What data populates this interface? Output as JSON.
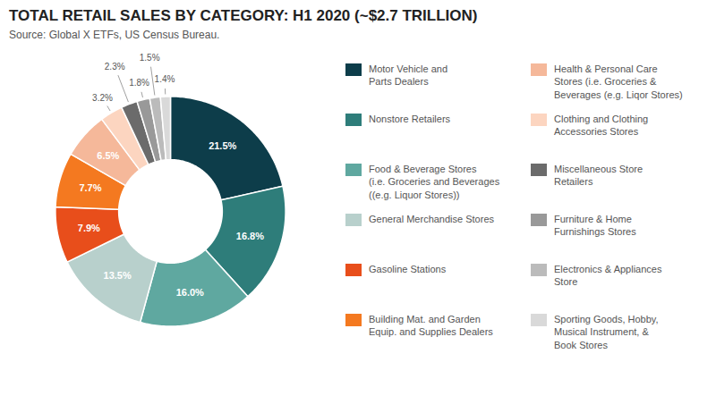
{
  "chart_data": {
    "type": "donut",
    "title": "TOTAL RETAIL SALES BY CATEGORY: H1 2020 (~$2.7 TRILLION)",
    "subtitle": "Source: Global X ETFs, US Census Bureau.",
    "categories": [
      "Motor Vehicle and\nParts Dealers",
      "Nonstore Retailers",
      "Food & Beverage Stores\n(i.e. Groceries and Beverages\n((e.g. Liquor Stores))",
      "General Merchandise Stores",
      "Gasoline Stations",
      "Building Mat. and Garden\nEquip. and Supplies Dealers",
      "Health & Personal Care\nStores (i.e. Groceries &\nBeverages (e.g. Liqor Stores)",
      "Clothing and Clothing\nAccessories Stores",
      "Miscellaneous Store\nRetailers",
      "Furniture & Home\nFurnishings Stores",
      "Electronics & Appliances\nStore",
      "Sporting Goods, Hobby,\nMusical Instrument, &\nBook Stores"
    ],
    "values": [
      21.5,
      16.8,
      16.0,
      13.5,
      7.9,
      7.7,
      6.5,
      3.2,
      2.3,
      1.8,
      1.5,
      1.4
    ],
    "value_labels": [
      "21.5%",
      "16.8%",
      "16.0%",
      "13.5%",
      "7.9%",
      "7.7%",
      "6.5%",
      "3.2%",
      "2.3%",
      "1.8%",
      "1.5%",
      "1.4%"
    ],
    "colors": [
      "#0d3d4a",
      "#2e7d7a",
      "#5fa8a0",
      "#b8d0cc",
      "#e84e1b",
      "#f47920",
      "#f5b89a",
      "#fcd5c0",
      "#6b6b6b",
      "#999999",
      "#bbbbbb",
      "#d9d9d9"
    ],
    "data_labels": true,
    "legend": "right"
  }
}
